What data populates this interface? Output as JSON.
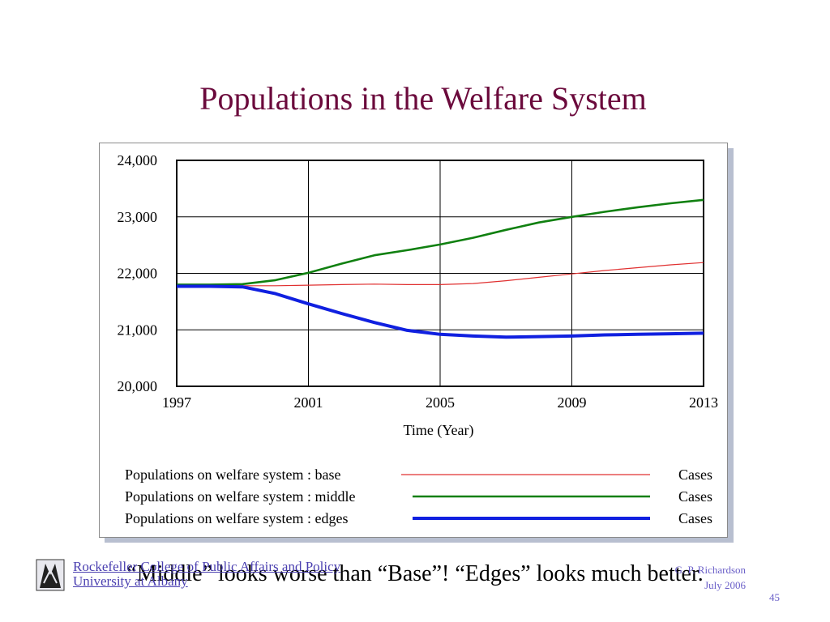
{
  "slide": {
    "title": "Populations in the Welfare System",
    "caption": "“Middle” looks worse than “Base”!  “Edges” looks much better.",
    "footer": {
      "org_line1": "Rockefeller College of Public Affairs and Policy",
      "org_line2": "University at Albany",
      "author": "G. P. Richardson",
      "date": "July 2006",
      "slide_number": "45"
    }
  },
  "colors": {
    "title": "#6b0a3c",
    "base": "#e03030",
    "middle": "#108010",
    "edges": "#1020e0",
    "footer_link": "#4a3fb0"
  },
  "chart_data": {
    "type": "line",
    "xlabel": "Time (Year)",
    "ylabel": "",
    "xlim": [
      1997,
      2013
    ],
    "ylim": [
      20000,
      24000
    ],
    "x_ticks": [
      1997,
      2001,
      2005,
      2009,
      2013
    ],
    "x_tick_labels": [
      "1997",
      "2001",
      "2005",
      "2009",
      "2013"
    ],
    "y_ticks": [
      20000,
      21000,
      22000,
      23000,
      24000
    ],
    "y_tick_labels": [
      "20,000",
      "21,000",
      "22,000",
      "23,000",
      "24,000"
    ],
    "grid": true,
    "legend_position": "bottom",
    "series": [
      {
        "name": "Populations on welfare system : base",
        "unit": "Cases",
        "color": "#e03030",
        "line_weight": "thin",
        "x": [
          1997,
          1998,
          1999,
          2000,
          2001,
          2002,
          2003,
          2004,
          2005,
          2006,
          2007,
          2008,
          2009,
          2010,
          2011,
          2012,
          2013
        ],
        "values": [
          21780,
          21780,
          21780,
          21780,
          21790,
          21800,
          21810,
          21800,
          21800,
          21820,
          21870,
          21930,
          21990,
          22050,
          22100,
          22150,
          22190
        ]
      },
      {
        "name": "Populations on welfare system : middle",
        "unit": "Cases",
        "color": "#108010",
        "line_weight": "medium",
        "x": [
          1997,
          1998,
          1999,
          2000,
          2001,
          2002,
          2003,
          2004,
          2005,
          2006,
          2007,
          2008,
          2009,
          2010,
          2011,
          2012,
          2013
        ],
        "values": [
          21800,
          21800,
          21810,
          21880,
          22010,
          22170,
          22320,
          22410,
          22510,
          22630,
          22770,
          22900,
          23000,
          23090,
          23170,
          23240,
          23300
        ]
      },
      {
        "name": "Populations on welfare system : edges",
        "unit": "Cases",
        "color": "#1020e0",
        "line_weight": "thick",
        "x": [
          1997,
          1998,
          1999,
          2000,
          2001,
          2002,
          2003,
          2004,
          2005,
          2006,
          2007,
          2008,
          2009,
          2010,
          2011,
          2012,
          2013
        ],
        "values": [
          21770,
          21770,
          21760,
          21640,
          21460,
          21290,
          21130,
          20990,
          20920,
          20890,
          20870,
          20880,
          20890,
          20910,
          20920,
          20930,
          20940
        ]
      }
    ]
  }
}
